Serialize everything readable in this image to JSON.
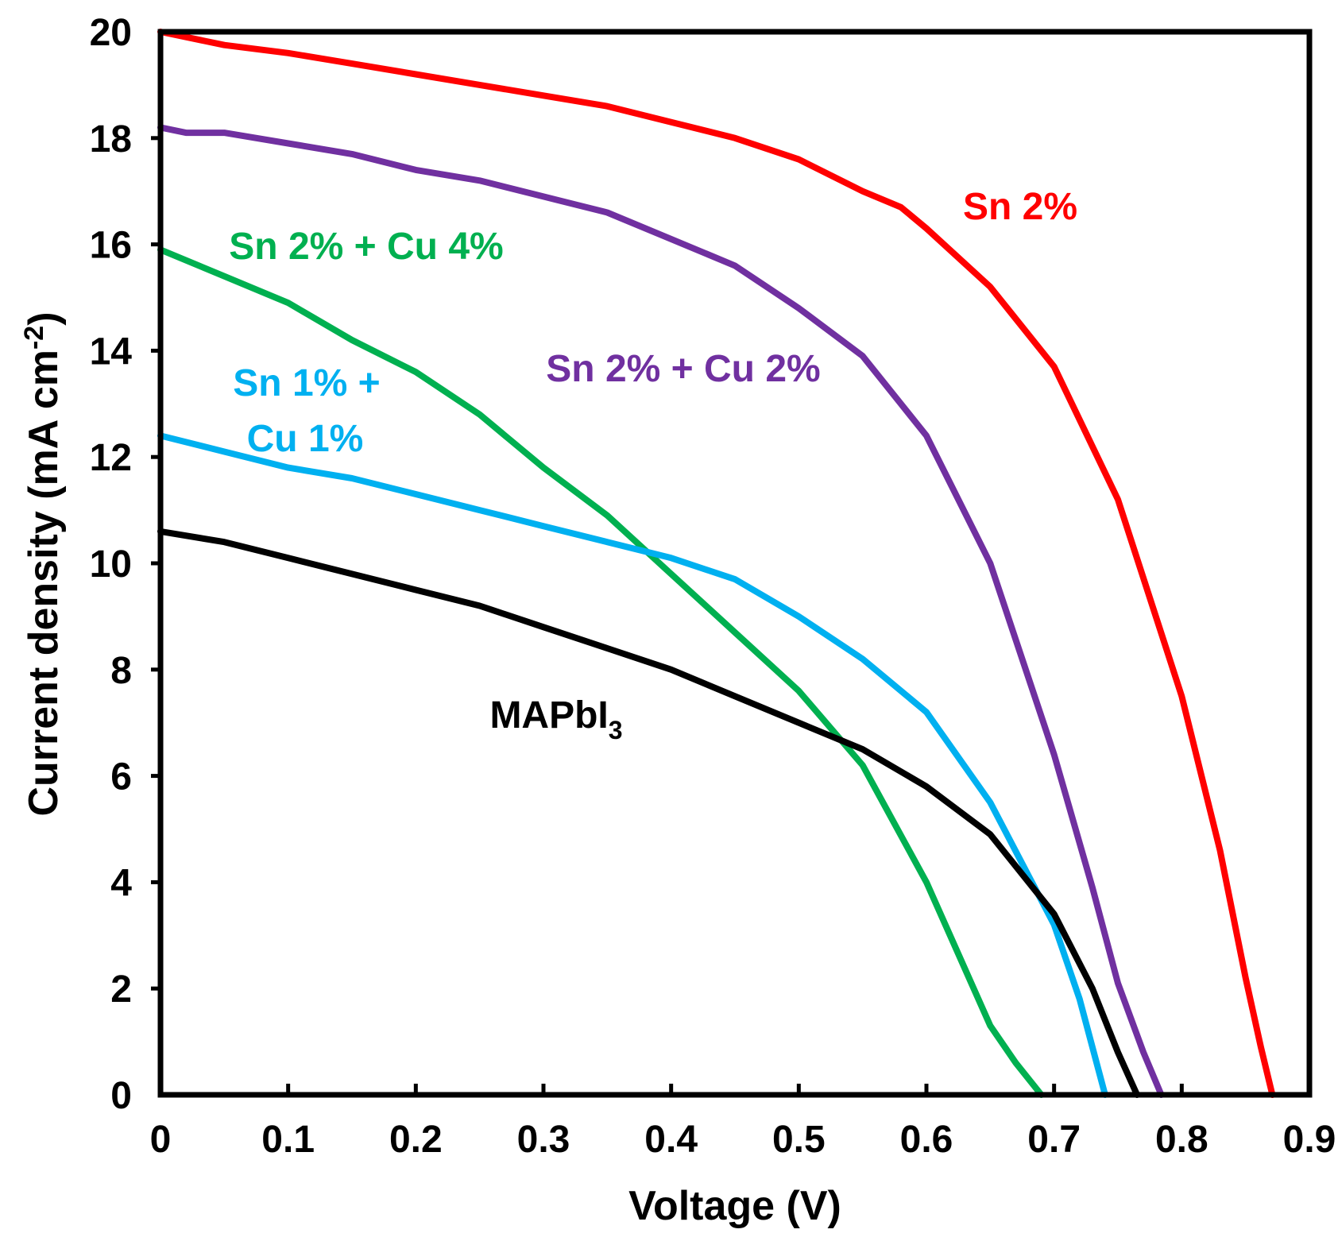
{
  "chart_data": {
    "type": "line",
    "xlabel": "Voltage (V)",
    "ylabel": {
      "main": "Current density (mA cm",
      "sup": "-2",
      "close": ")"
    },
    "xlim": [
      0,
      0.9
    ],
    "ylim": [
      0,
      20
    ],
    "xticks": [
      "0",
      "0.1",
      "0.2",
      "0.3",
      "0.4",
      "0.5",
      "0.6",
      "0.7",
      "0.8",
      "0.9"
    ],
    "yticks": [
      "0",
      "2",
      "4",
      "6",
      "8",
      "10",
      "12",
      "14",
      "16",
      "18",
      "20"
    ],
    "grid": false,
    "legend": "none",
    "series": [
      {
        "label_lines": [
          "Sn 2%"
        ],
        "color": "#ff0000",
        "x": [
          0,
          0.05,
          0.1,
          0.15,
          0.2,
          0.25,
          0.3,
          0.35,
          0.4,
          0.45,
          0.5,
          0.55,
          0.58,
          0.6,
          0.65,
          0.7,
          0.75,
          0.8,
          0.83,
          0.85,
          0.862,
          0.871
        ],
        "y": [
          20.0,
          19.75,
          19.6,
          19.4,
          19.2,
          19.0,
          18.8,
          18.6,
          18.3,
          18.0,
          17.6,
          17.0,
          16.7,
          16.3,
          15.2,
          13.7,
          11.2,
          7.5,
          4.6,
          2.2,
          0.9,
          0
        ]
      },
      {
        "label_lines": [
          "Sn 2% + Cu 2%"
        ],
        "color": "#7030a0",
        "x": [
          0,
          0.02,
          0.05,
          0.1,
          0.15,
          0.2,
          0.25,
          0.3,
          0.35,
          0.4,
          0.45,
          0.5,
          0.55,
          0.6,
          0.65,
          0.7,
          0.73,
          0.75,
          0.77,
          0.784
        ],
        "y": [
          18.2,
          18.1,
          18.1,
          17.9,
          17.7,
          17.4,
          17.2,
          16.9,
          16.6,
          16.1,
          15.6,
          14.8,
          13.9,
          12.4,
          10.0,
          6.4,
          3.9,
          2.1,
          0.8,
          0
        ]
      },
      {
        "label_lines": [
          "Sn 2% + Cu 4%"
        ],
        "color": "#00b050",
        "x": [
          0,
          0.05,
          0.1,
          0.15,
          0.2,
          0.25,
          0.3,
          0.35,
          0.4,
          0.45,
          0.5,
          0.55,
          0.6,
          0.65,
          0.67,
          0.69
        ],
        "y": [
          15.9,
          15.4,
          14.9,
          14.2,
          13.6,
          12.8,
          11.8,
          10.9,
          9.8,
          8.7,
          7.6,
          6.2,
          4.0,
          1.3,
          0.6,
          0
        ]
      },
      {
        "label_lines": [
          "Sn 1% +",
          "Cu 1%"
        ],
        "color": "#00b0f0",
        "x": [
          0,
          0.05,
          0.1,
          0.15,
          0.2,
          0.25,
          0.3,
          0.35,
          0.4,
          0.45,
          0.5,
          0.55,
          0.6,
          0.65,
          0.7,
          0.72,
          0.74
        ],
        "y": [
          12.4,
          12.1,
          11.8,
          11.6,
          11.3,
          11.0,
          10.7,
          10.4,
          10.1,
          9.7,
          9.0,
          8.2,
          7.2,
          5.5,
          3.2,
          1.8,
          0
        ]
      },
      {
        "label_lines": [
          "MAPbI",
          "3"
        ],
        "color": "#000000",
        "x": [
          0,
          0.05,
          0.1,
          0.15,
          0.2,
          0.25,
          0.3,
          0.35,
          0.4,
          0.45,
          0.5,
          0.55,
          0.6,
          0.65,
          0.7,
          0.73,
          0.75,
          0.765
        ],
        "y": [
          10.6,
          10.4,
          10.1,
          9.8,
          9.5,
          9.2,
          8.8,
          8.4,
          8.0,
          7.5,
          7.0,
          6.5,
          5.8,
          4.9,
          3.4,
          2.0,
          0.8,
          0
        ]
      }
    ]
  }
}
